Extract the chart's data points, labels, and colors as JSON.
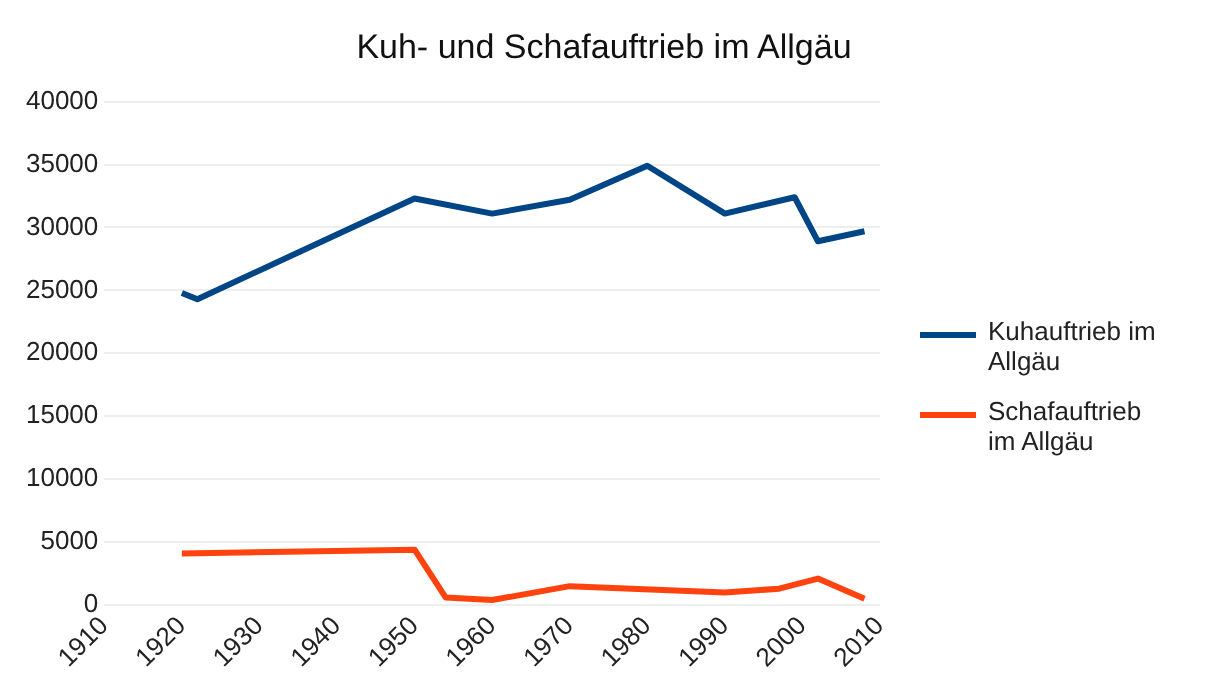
{
  "chart_data": {
    "type": "line",
    "title": "Kuh- und Schafauftrieb im Allgäu",
    "xlim": [
      1910,
      2010
    ],
    "xticks": [
      1910,
      1920,
      1930,
      1940,
      1950,
      1960,
      1970,
      1980,
      1990,
      2000,
      2010
    ],
    "ylim": [
      0,
      40000
    ],
    "yticks": [
      0,
      5000,
      10000,
      15000,
      20000,
      25000,
      30000,
      35000,
      40000
    ],
    "grid": "y",
    "legend": "right",
    "marker": "none",
    "line_style": "solid",
    "series": [
      {
        "name": "Kuhauftrieb im Allgäu",
        "color": "#004586",
        "x": [
          1920,
          1922,
          1950,
          1960,
          1970,
          1980,
          1990,
          1999,
          2002,
          2008
        ],
        "values": [
          24800,
          24300,
          32300,
          31100,
          32200,
          34900,
          31100,
          32400,
          28900,
          29700
        ]
      },
      {
        "name": "Schafauftrieb im Allgäu",
        "color": "#ff420e",
        "x": [
          1920,
          1950,
          1954,
          1960,
          1970,
          1990,
          1997,
          2002,
          2008
        ],
        "values": [
          4100,
          4400,
          600,
          400,
          1500,
          1000,
          1300,
          2100,
          500
        ]
      }
    ]
  }
}
